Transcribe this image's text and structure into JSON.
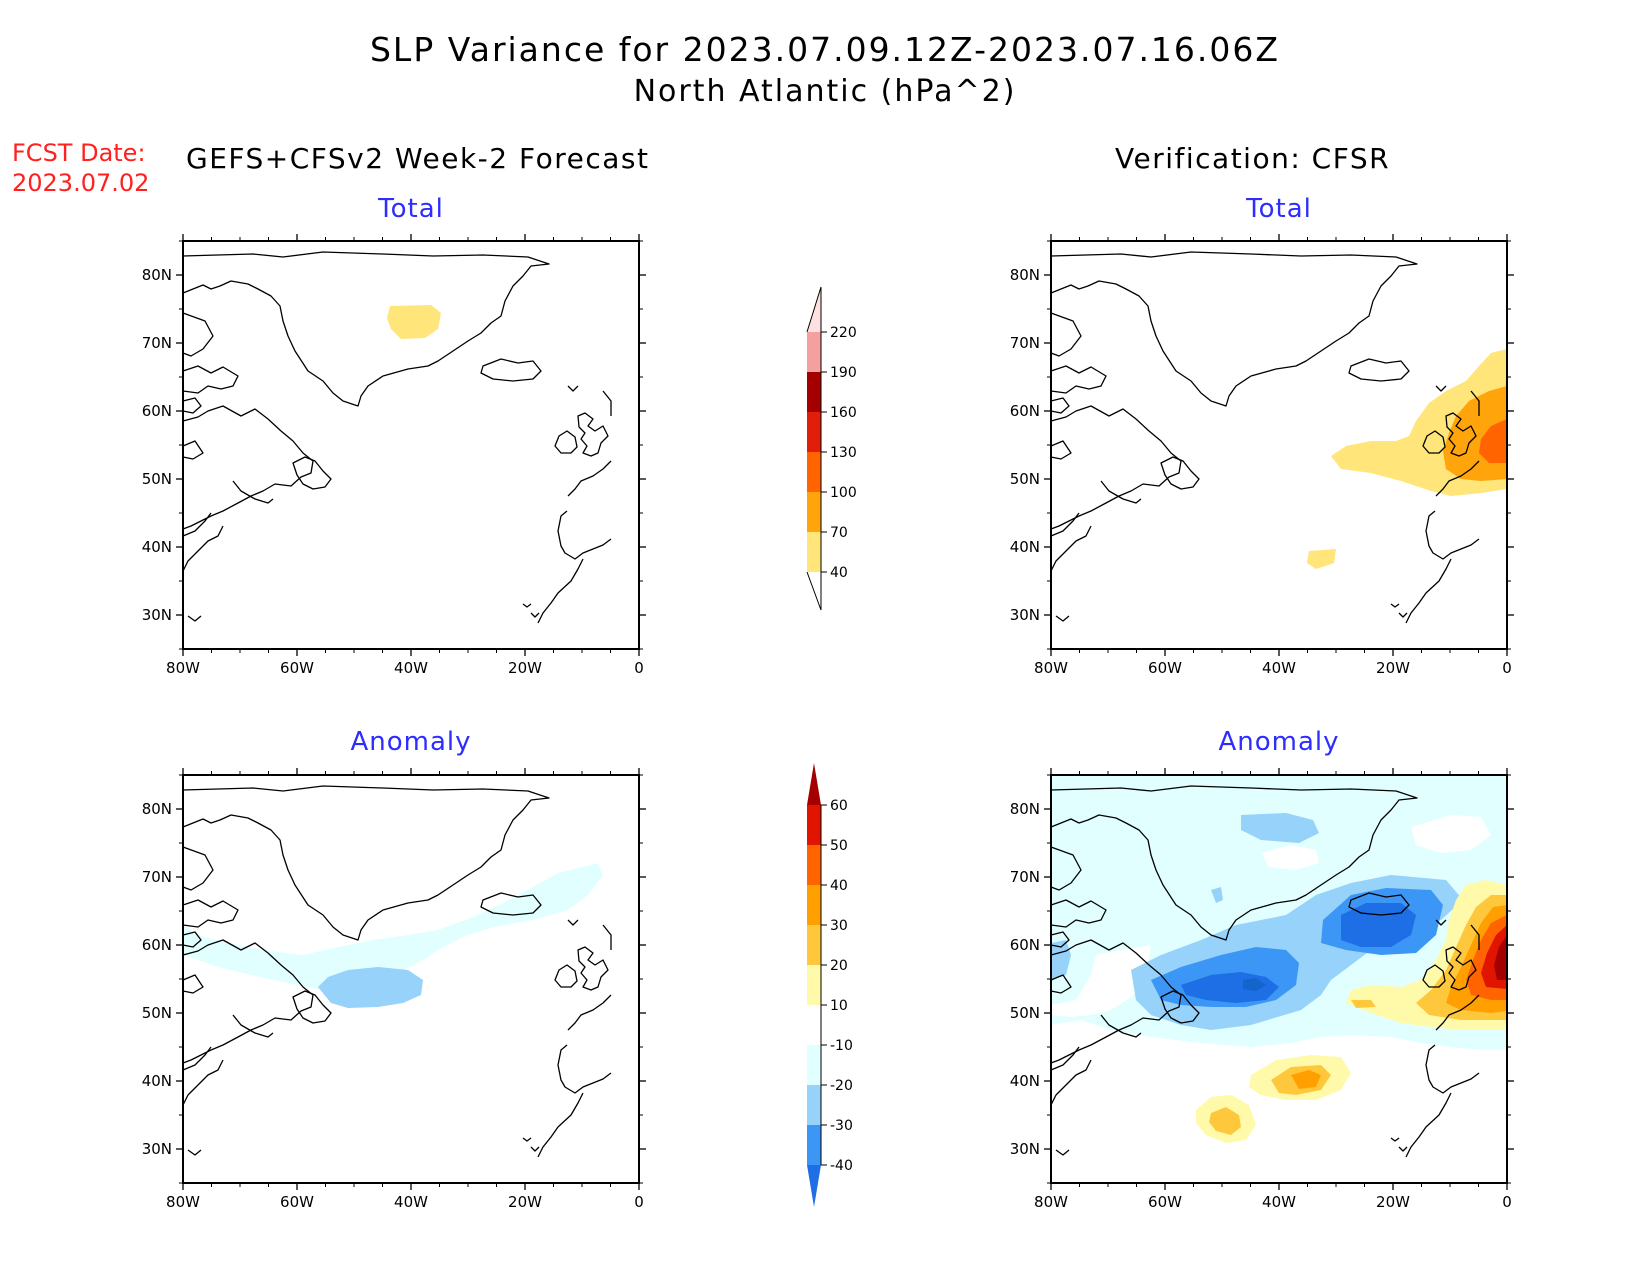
{
  "title": {
    "line1": "SLP Variance for 2023.07.09.12Z-2023.07.16.06Z",
    "line2": "North Atlantic (hPa^2)"
  },
  "fcst": {
    "label": "FCST Date:",
    "date": "2023.07.02"
  },
  "headers": {
    "left": "GEFS+CFSv2 Week-2 Forecast",
    "right": "Verification: CFSR"
  },
  "panels": [
    {
      "id": "forecast-total",
      "title": "Total"
    },
    {
      "id": "verification-total",
      "title": "Total"
    },
    {
      "id": "forecast-anomaly",
      "title": "Anomaly"
    },
    {
      "id": "verification-anomaly",
      "title": "Anomaly"
    }
  ],
  "axes": {
    "lon_ticks": [
      "80W",
      "60W",
      "40W",
      "20W",
      "0"
    ],
    "lat_ticks": [
      "80N",
      "70N",
      "60N",
      "50N",
      "40N",
      "30N"
    ],
    "lon_range": [
      -80,
      0
    ],
    "lat_range": [
      25,
      85
    ]
  },
  "colorbars": {
    "total": {
      "levels": [
        "40",
        "70",
        "100",
        "130",
        "160",
        "190",
        "220"
      ],
      "colors": [
        "#ffe57a",
        "#ffa40a",
        "#ff6400",
        "#e01e0a",
        "#a50000",
        "#f5a0a0",
        "#ffe0e0"
      ]
    },
    "anomaly": {
      "levels": [
        "-40",
        "-30",
        "-20",
        "-10",
        "10",
        "20",
        "30",
        "40",
        "50",
        "60"
      ],
      "colors": [
        "#1e6ee6",
        "#3c96f5",
        "#96d2fa",
        "#e1ffff",
        "#ffffff",
        "#fffaaa",
        "#ffc83c",
        "#ffa000",
        "#ff6400",
        "#e11400",
        "#a50000"
      ]
    }
  }
}
